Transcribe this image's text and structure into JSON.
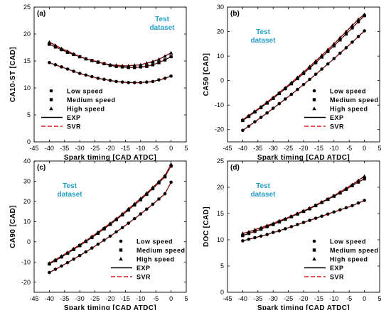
{
  "legend_entries": [
    {
      "label": "Low speed",
      "kind": "marker",
      "marker": "circle"
    },
    {
      "label": "Medium speed",
      "kind": "marker",
      "marker": "square"
    },
    {
      "label": "High speed",
      "kind": "marker",
      "marker": "triangle"
    },
    {
      "label": "EXP",
      "kind": "line",
      "color": "#000000",
      "dash": "solid"
    },
    {
      "label": "SVR",
      "kind": "line",
      "color": "#e01b1b",
      "dash": "dashed"
    }
  ],
  "colors": {
    "exp": "#000000",
    "svr": "#e01b1b",
    "annotation": "#2a9fc9"
  },
  "chart_data": [
    {
      "type": "line",
      "panel_label": "(a)",
      "annotation": [
        "Test",
        "dataset"
      ],
      "annotation_position": "top-right",
      "xlabel": "Spark timing [CAD ATDC]",
      "ylabel": "CA10-ST [CAD]",
      "xlim": [
        -45,
        5
      ],
      "ylim": [
        0,
        25
      ],
      "xticks": [
        -45,
        -40,
        -35,
        -30,
        -25,
        -20,
        -15,
        -10,
        -5,
        0,
        5
      ],
      "yticks": [
        0,
        5,
        10,
        15,
        20,
        25
      ],
      "legend_position": "bottom-left",
      "x": [
        -40,
        -38,
        -36,
        -34,
        -32,
        -30,
        -28,
        -26,
        -24,
        -22,
        -20,
        -18,
        -16,
        -14,
        -12,
        -10,
        -8,
        -6,
        -4,
        -2,
        0
      ],
      "series": [
        {
          "name": "Low speed",
          "marker": "circle",
          "values": [
            14.7,
            14.3,
            13.9,
            13.5,
            13.1,
            12.7,
            12.4,
            12.1,
            11.8,
            11.6,
            11.4,
            11.2,
            11.1,
            11.0,
            11.0,
            11.0,
            11.1,
            11.2,
            11.5,
            11.8,
            12.2
          ]
        },
        {
          "name": "Medium speed",
          "marker": "square",
          "values": [
            18.1,
            17.6,
            17.1,
            16.6,
            16.2,
            15.8,
            15.4,
            15.1,
            14.8,
            14.5,
            14.2,
            14.0,
            13.9,
            13.8,
            13.8,
            13.9,
            14.0,
            14.3,
            14.7,
            15.2,
            15.8
          ]
        },
        {
          "name": "High speed",
          "marker": "triangle",
          "values": [
            18.5,
            17.9,
            17.3,
            16.8,
            16.3,
            15.8,
            15.4,
            15.1,
            14.8,
            14.5,
            14.3,
            14.2,
            14.1,
            14.1,
            14.2,
            14.3,
            14.6,
            14.9,
            15.3,
            15.9,
            16.5
          ]
        }
      ]
    },
    {
      "type": "line",
      "panel_label": "(b)",
      "annotation": [
        "Test",
        "dataset"
      ],
      "annotation_position": "top-left",
      "xlabel": "Spark timing [CAD ATDC]",
      "ylabel": "CA50 [CAD]",
      "xlim": [
        -45,
        5
      ],
      "ylim": [
        -25,
        30
      ],
      "xticks": [
        -45,
        -40,
        -35,
        -30,
        -25,
        -20,
        -15,
        -10,
        -5,
        0,
        5
      ],
      "yticks": [
        -20,
        -10,
        0,
        10,
        20,
        30
      ],
      "legend_position": "bottom-right",
      "x": [
        -40,
        -38,
        -36,
        -34,
        -32,
        -30,
        -28,
        -26,
        -24,
        -22,
        -20,
        -18,
        -16,
        -14,
        -12,
        -10,
        -8,
        -6,
        -4,
        -2,
        0
      ],
      "series": [
        {
          "name": "Low speed",
          "marker": "circle",
          "values": [
            -20.3,
            -18.6,
            -16.8,
            -15.0,
            -13.2,
            -11.3,
            -9.4,
            -7.5,
            -5.6,
            -3.6,
            -1.6,
            0.5,
            2.6,
            4.7,
            6.8,
            9.0,
            11.2,
            13.4,
            15.7,
            18.0,
            20.3
          ]
        },
        {
          "name": "Medium speed",
          "marker": "square",
          "values": [
            -16.3,
            -14.6,
            -12.8,
            -11.0,
            -9.2,
            -7.3,
            -5.3,
            -3.3,
            -1.3,
            0.8,
            2.9,
            5.1,
            7.3,
            9.6,
            11.9,
            14.2,
            16.6,
            19.0,
            21.5,
            24.0,
            26.5
          ]
        },
        {
          "name": "High speed",
          "marker": "triangle",
          "values": [
            -16.0,
            -14.3,
            -12.5,
            -10.7,
            -8.8,
            -6.9,
            -4.9,
            -2.9,
            -0.8,
            1.3,
            3.5,
            5.7,
            8.0,
            10.3,
            12.6,
            15.0,
            17.5,
            20.0,
            22.5,
            25.0,
            27.0
          ]
        }
      ]
    },
    {
      "type": "line",
      "panel_label": "(c)",
      "annotation": [
        "Test",
        "dataset"
      ],
      "annotation_position": "top-left",
      "xlabel": "Spark timing [CAD ATDC]",
      "ylabel": "CA90 [CAD]",
      "xlim": [
        -45,
        5
      ],
      "ylim": [
        -25,
        40
      ],
      "xticks": [
        -45,
        -40,
        -35,
        -30,
        -25,
        -20,
        -15,
        -10,
        -5,
        0,
        5
      ],
      "yticks": [
        -20,
        -10,
        0,
        10,
        20,
        30,
        40
      ],
      "legend_position": "bottom-right",
      "x": [
        -40,
        -38,
        -36,
        -34,
        -32,
        -30,
        -28,
        -26,
        -24,
        -22,
        -20,
        -18,
        -16,
        -14,
        -12,
        -10,
        -8,
        -6,
        -4,
        -2,
        0
      ],
      "series": [
        {
          "name": "Low speed",
          "marker": "circle",
          "values": [
            -15.2,
            -13.6,
            -12.0,
            -10.3,
            -8.6,
            -6.8,
            -5.0,
            -3.1,
            -1.2,
            0.8,
            2.8,
            4.9,
            7.0,
            9.2,
            11.5,
            13.8,
            16.2,
            18.6,
            21.2,
            23.8,
            29.5
          ]
        },
        {
          "name": "Medium speed",
          "marker": "square",
          "values": [
            -11.0,
            -9.3,
            -7.5,
            -5.7,
            -3.8,
            -1.9,
            0.1,
            2.1,
            4.2,
            6.4,
            8.6,
            10.9,
            13.3,
            15.7,
            18.2,
            20.8,
            23.5,
            26.3,
            29.2,
            32.2,
            37.5
          ]
        },
        {
          "name": "High speed",
          "marker": "triangle",
          "values": [
            -10.6,
            -8.9,
            -7.1,
            -5.3,
            -3.4,
            -1.5,
            0.5,
            2.6,
            4.7,
            6.9,
            9.1,
            11.4,
            13.8,
            16.3,
            18.8,
            21.4,
            24.1,
            26.9,
            29.8,
            32.8,
            38.3
          ]
        }
      ]
    },
    {
      "type": "line",
      "panel_label": "(d)",
      "annotation": [
        "Test",
        "dataset"
      ],
      "annotation_position": "top-left",
      "xlabel": "Spark timing [CAD ATDC]",
      "ylabel": "DOC [CAD]",
      "xlim": [
        -45,
        5
      ],
      "ylim": [
        0,
        25
      ],
      "xticks": [
        -45,
        -40,
        -35,
        -30,
        -25,
        -20,
        -15,
        -10,
        -5,
        0,
        5
      ],
      "yticks": [
        0,
        5,
        10,
        15,
        20,
        25
      ],
      "legend_position": "bottom-right",
      "x": [
        -40,
        -38,
        -36,
        -34,
        -32,
        -30,
        -28,
        -26,
        -24,
        -22,
        -20,
        -18,
        -16,
        -14,
        -12,
        -10,
        -8,
        -6,
        -4,
        -2,
        0
      ],
      "series": [
        {
          "name": "Low speed",
          "marker": "circle",
          "values": [
            9.8,
            10.1,
            10.4,
            10.7,
            11.0,
            11.4,
            11.7,
            12.1,
            12.5,
            12.9,
            13.3,
            13.7,
            14.1,
            14.5,
            14.9,
            15.3,
            15.7,
            16.1,
            16.5,
            17.0,
            17.5
          ]
        },
        {
          "name": "Medium speed",
          "marker": "square",
          "values": [
            10.8,
            11.2,
            11.6,
            12.0,
            12.5,
            12.9,
            13.4,
            13.9,
            14.4,
            14.9,
            15.4,
            15.9,
            16.5,
            17.1,
            17.7,
            18.3,
            18.9,
            19.6,
            20.3,
            21.0,
            21.6
          ]
        },
        {
          "name": "High speed",
          "marker": "triangle",
          "values": [
            11.2,
            11.5,
            11.9,
            12.3,
            12.7,
            13.1,
            13.6,
            14.0,
            14.5,
            15.0,
            15.5,
            16.0,
            16.6,
            17.2,
            17.8,
            18.4,
            19.1,
            19.8,
            20.5,
            21.3,
            22.1
          ]
        }
      ]
    }
  ]
}
